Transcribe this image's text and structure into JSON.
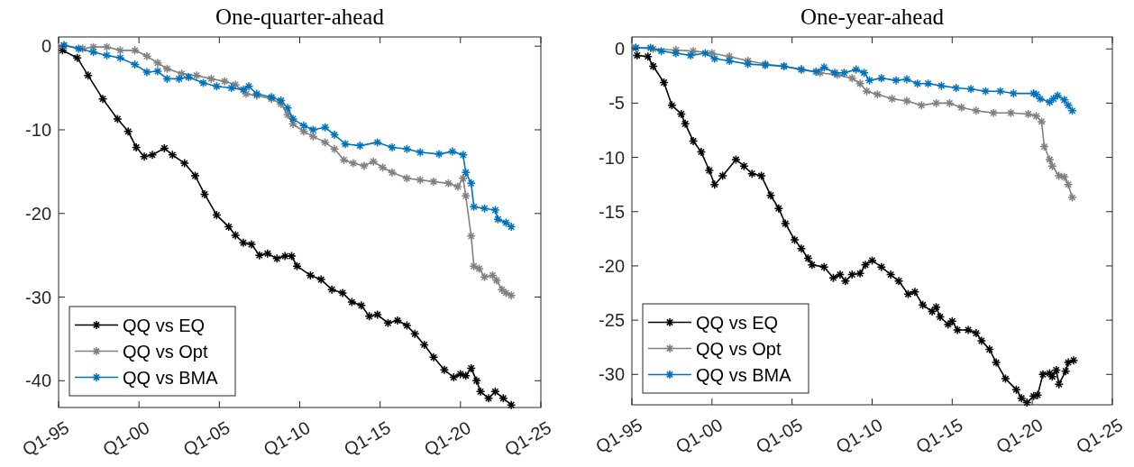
{
  "chart_data": [
    {
      "type": "line",
      "title": "One-quarter-ahead",
      "legend": "bottom left",
      "marker": "cross",
      "grid": false,
      "xlim": [
        "1995-01",
        "2025-01"
      ],
      "xticks": [
        {
          "value": "1995-01",
          "label": "Q1-95"
        },
        {
          "value": "2000-01",
          "label": "Q1-00"
        },
        {
          "value": "2005-01",
          "label": "Q1-05"
        },
        {
          "value": "2010-01",
          "label": "Q1-10"
        },
        {
          "value": "2015-01",
          "label": "Q1-15"
        },
        {
          "value": "2020-01",
          "label": "Q1-20"
        },
        {
          "value": "2025-01",
          "label": "Q1-25"
        }
      ],
      "ylim": [
        -43.2,
        1.1
      ],
      "yticks": [
        -40,
        -30,
        -20,
        -10,
        0
      ],
      "series": [
        {
          "name": "QQ vs EQ",
          "color": "#000000",
          "x": [
            "1995-04",
            "1996-03",
            "1996-11",
            "1997-10",
            "1998-09",
            "1999-05",
            "1999-11",
            "2000-05",
            "2000-11",
            "2001-08",
            "2002-02",
            "2002-11",
            "2003-07",
            "2004-02",
            "2004-11",
            "2005-08",
            "2006-01",
            "2006-07",
            "2007-01",
            "2007-07",
            "2008-01",
            "2008-08",
            "2009-02",
            "2009-07",
            "2009-11",
            "2010-09",
            "2011-05",
            "2012-01",
            "2012-09",
            "2013-04",
            "2013-11",
            "2014-05",
            "2014-11",
            "2015-07",
            "2016-02",
            "2016-09",
            "2017-03",
            "2017-10",
            "2018-05",
            "2019-01",
            "2019-08",
            "2020-01",
            "2020-05",
            "2020-09",
            "2021-01",
            "2021-04",
            "2021-10",
            "2022-03",
            "2022-09",
            "2023-03"
          ],
          "values": [
            -0.5,
            -1.4,
            -3.5,
            -6.3,
            -8.7,
            -10.2,
            -12.1,
            -13.2,
            -13.0,
            -12.2,
            -13.0,
            -14.0,
            -15.5,
            -17.7,
            -20.2,
            -21.6,
            -22.6,
            -23.5,
            -23.7,
            -25.0,
            -24.8,
            -25.4,
            -25.1,
            -25.1,
            -26.3,
            -27.4,
            -27.9,
            -29.1,
            -29.5,
            -30.6,
            -31.0,
            -32.3,
            -32.1,
            -33.1,
            -32.8,
            -33.4,
            -34.4,
            -35.7,
            -37.2,
            -38.7,
            -39.6,
            -39.2,
            -39.4,
            -38.5,
            -40.0,
            -41.3,
            -42.1,
            -41.3,
            -42.1,
            -42.9
          ]
        },
        {
          "name": "QQ vs Opt",
          "color": "#808080",
          "x": [
            "1995-05",
            "1996-07",
            "1997-03",
            "1998-01",
            "1998-11",
            "1999-10",
            "2000-07",
            "2001-03",
            "2001-10",
            "2002-09",
            "2003-08",
            "2004-07",
            "2005-05",
            "2006-01",
            "2006-09",
            "2007-05",
            "2008-04",
            "2008-11",
            "2009-04",
            "2009-08",
            "2010-04",
            "2010-11",
            "2011-08",
            "2012-03",
            "2012-10",
            "2013-05",
            "2014-01",
            "2014-08",
            "2015-03",
            "2015-10",
            "2016-09",
            "2017-07",
            "2018-05",
            "2019-04",
            "2019-11",
            "2020-03",
            "2020-05",
            "2020-09",
            "2020-11",
            "2021-03",
            "2021-07",
            "2022-01",
            "2022-04",
            "2022-08",
            "2022-11",
            "2023-03"
          ],
          "values": [
            0.1,
            -0.3,
            -0.1,
            -0.1,
            -0.5,
            -0.5,
            -1.2,
            -2.0,
            -2.7,
            -3.3,
            -3.5,
            -3.9,
            -4.2,
            -4.6,
            -5.7,
            -5.9,
            -6.3,
            -6.9,
            -8.2,
            -9.3,
            -10.2,
            -10.8,
            -11.5,
            -12.3,
            -13.6,
            -14.0,
            -14.3,
            -13.8,
            -14.5,
            -15.1,
            -15.8,
            -16.0,
            -16.2,
            -16.4,
            -16.8,
            -15.8,
            -17.9,
            -22.7,
            -26.3,
            -26.6,
            -27.6,
            -27.4,
            -28.0,
            -29.1,
            -29.5,
            -29.8
          ]
        },
        {
          "name": "QQ vs BMA",
          "color": "#0072bd",
          "x": [
            "1995-05",
            "1996-04",
            "1997-03",
            "1998-01",
            "1998-11",
            "1999-10",
            "2000-07",
            "2001-03",
            "2001-10",
            "2002-07",
            "2003-02",
            "2004-01",
            "2004-11",
            "2005-10",
            "2006-07",
            "2006-11",
            "2007-05",
            "2008-04",
            "2008-11",
            "2009-04",
            "2009-08",
            "2010-04",
            "2010-11",
            "2011-08",
            "2012-03",
            "2012-11",
            "2013-10",
            "2014-11",
            "2015-10",
            "2016-09",
            "2017-07",
            "2018-09",
            "2019-07",
            "2020-03",
            "2020-05",
            "2020-09",
            "2020-11",
            "2021-07",
            "2022-03",
            "2022-05",
            "2022-11",
            "2023-03"
          ],
          "values": [
            0.1,
            -0.3,
            -0.7,
            -1.1,
            -1.4,
            -2.2,
            -3.1,
            -3.0,
            -3.9,
            -3.9,
            -3.7,
            -4.4,
            -4.8,
            -5.0,
            -5.2,
            -4.8,
            -5.7,
            -6.1,
            -6.5,
            -7.4,
            -8.7,
            -9.5,
            -10.0,
            -9.7,
            -10.6,
            -11.7,
            -11.9,
            -11.5,
            -12.1,
            -12.3,
            -12.7,
            -12.9,
            -12.6,
            -13.0,
            -15.1,
            -16.4,
            -19.2,
            -19.4,
            -19.6,
            -20.7,
            -21.1,
            -21.6
          ]
        }
      ]
    },
    {
      "type": "line",
      "title": "One-year-ahead",
      "legend": "bottom left",
      "marker": "cross",
      "grid": false,
      "xlim": [
        "1995-01",
        "2025-01"
      ],
      "xticks": [
        {
          "value": "1995-01",
          "label": "Q1-95"
        },
        {
          "value": "2000-01",
          "label": "Q1-00"
        },
        {
          "value": "2005-01",
          "label": "Q1-05"
        },
        {
          "value": "2010-01",
          "label": "Q1-10"
        },
        {
          "value": "2015-01",
          "label": "Q1-15"
        },
        {
          "value": "2020-01",
          "label": "Q1-20"
        },
        {
          "value": "2025-01",
          "label": "Q1-25"
        }
      ],
      "ylim": [
        -32.8,
        1.1
      ],
      "yticks": [
        -30,
        -25,
        -20,
        -15,
        -10,
        -5,
        0
      ],
      "series": [
        {
          "name": "QQ vs EQ",
          "color": "#000000",
          "x": [
            "1995-05",
            "1996-01",
            "1996-05",
            "1997-01",
            "1997-07",
            "1998-02",
            "1998-05",
            "1998-11",
            "1999-05",
            "1999-11",
            "2000-03",
            "2000-09",
            "2001-07",
            "2002-01",
            "2002-07",
            "2003-02",
            "2003-09",
            "2004-03",
            "2004-08",
            "2005-03",
            "2005-08",
            "2006-01",
            "2006-04",
            "2007-01",
            "2007-08",
            "2008-01",
            "2008-05",
            "2008-10",
            "2009-04",
            "2009-08",
            "2010-01",
            "2010-08",
            "2011-03",
            "2011-09",
            "2012-04",
            "2012-09",
            "2013-03",
            "2013-10",
            "2014-01",
            "2014-04",
            "2014-10",
            "2015-01",
            "2015-05",
            "2016-01",
            "2016-07",
            "2016-11",
            "2017-05",
            "2017-10",
            "2018-05",
            "2019-01",
            "2019-05",
            "2019-09",
            "2020-02",
            "2020-05",
            "2020-09",
            "2021-02",
            "2021-04",
            "2021-07",
            "2021-09",
            "2022-02",
            "2022-04",
            "2022-08"
          ],
          "values": [
            -0.6,
            -0.7,
            -1.6,
            -3.1,
            -5.2,
            -6.0,
            -6.9,
            -8.5,
            -9.5,
            -11.2,
            -12.5,
            -11.7,
            -10.2,
            -10.8,
            -11.5,
            -11.7,
            -13.5,
            -14.7,
            -16.1,
            -17.6,
            -18.4,
            -19.3,
            -19.9,
            -20.1,
            -21.1,
            -20.8,
            -21.4,
            -20.8,
            -20.7,
            -19.9,
            -19.5,
            -20.1,
            -20.8,
            -21.4,
            -22.6,
            -22.4,
            -23.6,
            -24.2,
            -23.8,
            -24.7,
            -25.4,
            -25.1,
            -25.9,
            -25.9,
            -26.2,
            -26.9,
            -27.7,
            -28.9,
            -30.4,
            -31.4,
            -32.2,
            -32.6,
            -32.0,
            -31.9,
            -30.0,
            -29.9,
            -30.2,
            -29.6,
            -30.9,
            -29.7,
            -28.9,
            -28.7
          ]
        },
        {
          "name": "QQ vs Opt",
          "color": "#808080",
          "x": [
            "1995-04",
            "1996-05",
            "1997-10",
            "1998-11",
            "2000-01",
            "2001-02",
            "2002-04",
            "2003-05",
            "2004-07",
            "2005-08",
            "2006-10",
            "2007-11",
            "2008-10",
            "2009-04",
            "2009-09",
            "2010-05",
            "2011-04",
            "2012-03",
            "2013-02",
            "2014-01",
            "2014-11",
            "2015-08",
            "2016-07",
            "2017-08",
            "2018-09",
            "2019-10",
            "2020-04",
            "2020-08",
            "2020-10",
            "2021-02",
            "2021-04",
            "2021-09",
            "2022-01",
            "2022-04",
            "2022-07"
          ],
          "values": [
            0.1,
            0.0,
            -0.1,
            -0.2,
            -0.4,
            -0.7,
            -1.1,
            -1.4,
            -1.6,
            -1.9,
            -2.2,
            -2.4,
            -2.7,
            -3.2,
            -3.9,
            -4.2,
            -4.6,
            -4.8,
            -5.2,
            -5.0,
            -5.0,
            -5.4,
            -5.7,
            -5.9,
            -5.9,
            -6.0,
            -6.2,
            -6.7,
            -9.0,
            -10.2,
            -10.8,
            -11.7,
            -11.8,
            -12.5,
            -13.7
          ]
        },
        {
          "name": "QQ vs BMA",
          "color": "#0072bd",
          "x": [
            "1995-04",
            "1996-03",
            "1996-11",
            "1997-10",
            "1998-09",
            "1999-08",
            "2000-03",
            "2001-02",
            "2002-04",
            "2003-05",
            "2004-07",
            "2005-08",
            "2006-07",
            "2007-01",
            "2007-09",
            "2008-04",
            "2009-01",
            "2009-07",
            "2009-11",
            "2010-08",
            "2011-07",
            "2012-03",
            "2012-11",
            "2013-07",
            "2014-05",
            "2015-04",
            "2016-03",
            "2017-02",
            "2018-01",
            "2018-11",
            "2020-02",
            "2020-04",
            "2020-07",
            "2021-02",
            "2021-05",
            "2021-08",
            "2022-01",
            "2022-04",
            "2022-07"
          ],
          "values": [
            0.1,
            0.1,
            -0.2,
            -0.4,
            -0.6,
            -0.4,
            -0.9,
            -1.1,
            -1.4,
            -1.5,
            -1.6,
            -1.9,
            -2.1,
            -1.7,
            -2.2,
            -2.2,
            -1.9,
            -2.2,
            -2.9,
            -2.7,
            -2.9,
            -2.8,
            -3.2,
            -3.2,
            -3.4,
            -3.6,
            -3.7,
            -3.9,
            -3.9,
            -4.1,
            -4.1,
            -4.2,
            -4.6,
            -4.9,
            -4.6,
            -4.3,
            -4.7,
            -5.2,
            -5.7
          ]
        }
      ]
    }
  ]
}
